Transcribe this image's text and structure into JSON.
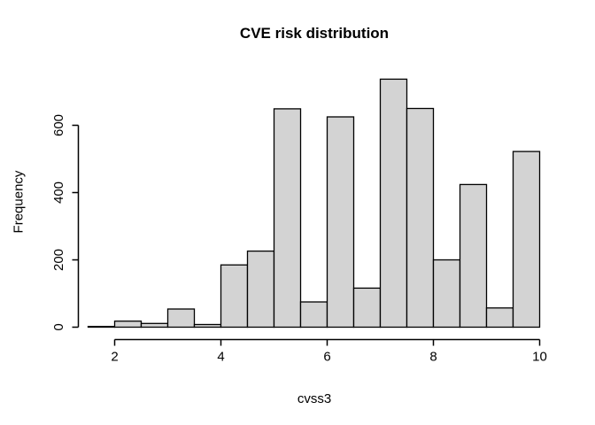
{
  "figure": {
    "background": "#ffffff"
  },
  "chart_data": {
    "type": "bar",
    "subtype": "histogram",
    "title": "CVE risk distribution",
    "xlabel": "cvss3",
    "ylabel": "Frequency",
    "breaks": [
      1.5,
      2.0,
      2.5,
      3.0,
      3.5,
      4.0,
      4.5,
      5.0,
      5.5,
      6.0,
      6.5,
      7.0,
      7.5,
      8.0,
      8.5,
      9.0,
      9.5,
      10.0
    ],
    "counts": [
      2,
      18,
      11,
      54,
      8,
      185,
      226,
      649,
      75,
      625,
      116,
      737,
      650,
      200,
      424,
      57,
      522
    ],
    "x_ticks": [
      2,
      4,
      6,
      8,
      10
    ],
    "y_ticks": [
      0,
      200,
      400,
      600
    ],
    "xlim": [
      1.5,
      10
    ],
    "ylim": [
      0,
      750
    ],
    "grid": false,
    "legend": null,
    "bar_fill": "#d3d3d3",
    "bar_stroke": "#000000",
    "axis_color": "#000000"
  }
}
